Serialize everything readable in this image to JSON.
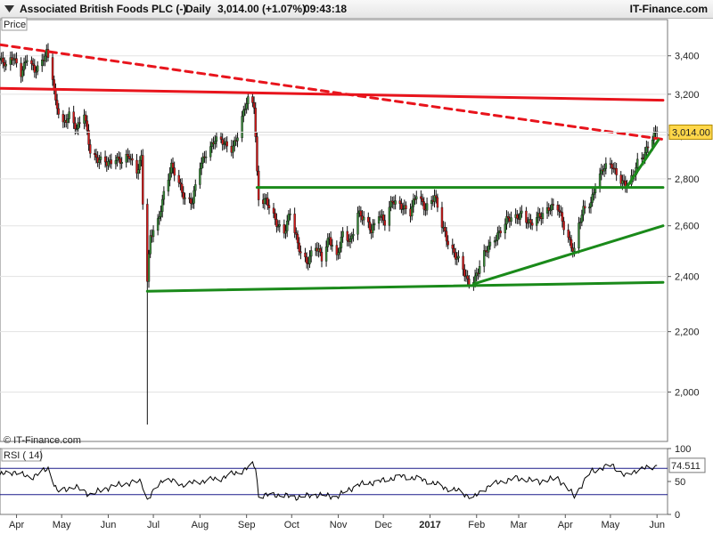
{
  "header": {
    "instrument": "Associated British Foods PLC (-)",
    "interval": "Daily",
    "quote": "3,014.00 (+1.07%)",
    "time": "09:43:18",
    "brand": "IT-Finance.com",
    "icon": "triangle-down-icon"
  },
  "price_panel": {
    "tag": "Price",
    "copyright": "© IT-Finance.com",
    "last_price_label": "3,014.00"
  },
  "rsi_panel": {
    "tag": "RSI ( 14)",
    "last_value_label": "74.511"
  },
  "colors": {
    "resistance": "#e8141c",
    "support": "#1a8a1a",
    "candle_up": "#3a8a3a",
    "candle_down": "#d21a1a",
    "rsi_line": "#000000",
    "rsi_levels": "#1a1a8a",
    "last_price_bg": "#ffd74a"
  },
  "chart_data": [
    {
      "type": "candlestick",
      "title": "Associated British Foods PLC (-)",
      "scale": "log",
      "ylim": [
        1850,
        3600
      ],
      "y_ticks": [
        {
          "value": 2000,
          "label": "2,000"
        },
        {
          "value": 2200,
          "label": "2,200"
        },
        {
          "value": 2400,
          "label": "2,400"
        },
        {
          "value": 2600,
          "label": "2,600"
        },
        {
          "value": 2800,
          "label": "2,800"
        },
        {
          "value": 3000,
          "label": "3,000"
        },
        {
          "value": 3200,
          "label": "3,200"
        },
        {
          "value": 3400,
          "label": "3,400"
        }
      ],
      "x_ticks": [
        {
          "date": "2016-04-01",
          "label": "Apr"
        },
        {
          "date": "2016-05-01",
          "label": "May"
        },
        {
          "date": "2016-06-01",
          "label": "Jun"
        },
        {
          "date": "2016-07-01",
          "label": "Jul"
        },
        {
          "date": "2016-08-01",
          "label": "Aug"
        },
        {
          "date": "2016-09-01",
          "label": "Sep"
        },
        {
          "date": "2016-10-01",
          "label": "Oct"
        },
        {
          "date": "2016-11-01",
          "label": "Nov"
        },
        {
          "date": "2016-12-01",
          "label": "Dec"
        },
        {
          "date": "2017-01-01",
          "label": "2017"
        },
        {
          "date": "2017-02-01",
          "label": "Feb"
        },
        {
          "date": "2017-03-01",
          "label": "Mar"
        },
        {
          "date": "2017-04-01",
          "label": "Apr"
        },
        {
          "date": "2017-05-01",
          "label": "May"
        },
        {
          "date": "2017-06-01",
          "label": "Jun"
        }
      ],
      "last_price": 3014,
      "close_path": [
        [
          "2016-03-21",
          3380
        ],
        [
          "2016-03-25",
          3340
        ],
        [
          "2016-03-30",
          3400
        ],
        [
          "2016-04-04",
          3310
        ],
        [
          "2016-04-08",
          3380
        ],
        [
          "2016-04-13",
          3320
        ],
        [
          "2016-04-18",
          3380
        ],
        [
          "2016-04-21",
          3420
        ],
        [
          "2016-04-25",
          3280
        ],
        [
          "2016-04-27",
          3150
        ],
        [
          "2016-05-02",
          3060
        ],
        [
          "2016-05-06",
          3100
        ],
        [
          "2016-05-11",
          3020
        ],
        [
          "2016-05-16",
          3110
        ],
        [
          "2016-05-20",
          2930
        ],
        [
          "2016-05-25",
          2880
        ],
        [
          "2016-05-31",
          2870
        ],
        [
          "2016-06-06",
          2900
        ],
        [
          "2016-06-10",
          2870
        ],
        [
          "2016-06-15",
          2900
        ],
        [
          "2016-06-20",
          2840
        ],
        [
          "2016-06-23",
          2900
        ],
        [
          "2016-06-24",
          2700
        ],
        [
          "2016-06-27",
          2380
        ],
        [
          "2016-06-29",
          2550
        ],
        [
          "2016-07-04",
          2620
        ],
        [
          "2016-07-08",
          2740
        ],
        [
          "2016-07-13",
          2850
        ],
        [
          "2016-07-18",
          2780
        ],
        [
          "2016-07-22",
          2720
        ],
        [
          "2016-07-27",
          2700
        ],
        [
          "2016-08-01",
          2850
        ],
        [
          "2016-08-05",
          2920
        ],
        [
          "2016-08-11",
          2980
        ],
        [
          "2016-08-16",
          2960
        ],
        [
          "2016-08-22",
          2940
        ],
        [
          "2016-08-26",
          3000
        ],
        [
          "2016-08-31",
          3130
        ],
        [
          "2016-09-02",
          3170
        ],
        [
          "2016-09-06",
          3150
        ],
        [
          "2016-09-07",
          3000
        ],
        [
          "2016-09-08",
          2830
        ],
        [
          "2016-09-09",
          2720
        ],
        [
          "2016-09-14",
          2700
        ],
        [
          "2016-09-20",
          2620
        ],
        [
          "2016-09-26",
          2580
        ],
        [
          "2016-09-30",
          2650
        ],
        [
          "2016-10-05",
          2520
        ],
        [
          "2016-10-11",
          2460
        ],
        [
          "2016-10-17",
          2510
        ],
        [
          "2016-10-21",
          2470
        ],
        [
          "2016-10-26",
          2560
        ],
        [
          "2016-10-31",
          2470
        ],
        [
          "2016-11-04",
          2560
        ],
        [
          "2016-11-09",
          2540
        ],
        [
          "2016-11-14",
          2660
        ],
        [
          "2016-11-18",
          2620
        ],
        [
          "2016-11-23",
          2580
        ],
        [
          "2016-11-28",
          2660
        ],
        [
          "2016-12-02",
          2610
        ],
        [
          "2016-12-07",
          2700
        ],
        [
          "2016-12-13",
          2690
        ],
        [
          "2016-12-19",
          2650
        ],
        [
          "2016-12-23",
          2730
        ],
        [
          "2016-12-29",
          2680
        ],
        [
          "2017-01-04",
          2720
        ],
        [
          "2017-01-09",
          2600
        ],
        [
          "2017-01-13",
          2540
        ],
        [
          "2017-01-18",
          2480
        ],
        [
          "2017-01-23",
          2420
        ],
        [
          "2017-01-26",
          2380
        ],
        [
          "2017-01-31",
          2400
        ],
        [
          "2017-02-06",
          2480
        ],
        [
          "2017-02-10",
          2520
        ],
        [
          "2017-02-15",
          2570
        ],
        [
          "2017-02-21",
          2620
        ],
        [
          "2017-02-27",
          2630
        ],
        [
          "2017-03-03",
          2660
        ],
        [
          "2017-03-09",
          2600
        ],
        [
          "2017-03-15",
          2640
        ],
        [
          "2017-03-21",
          2680
        ],
        [
          "2017-03-27",
          2670
        ],
        [
          "2017-03-31",
          2600
        ],
        [
          "2017-04-04",
          2540
        ],
        [
          "2017-04-07",
          2500
        ],
        [
          "2017-04-10",
          2600
        ],
        [
          "2017-04-13",
          2660
        ],
        [
          "2017-04-18",
          2700
        ],
        [
          "2017-04-21",
          2780
        ],
        [
          "2017-04-26",
          2840
        ],
        [
          "2017-05-02",
          2860
        ],
        [
          "2017-05-08",
          2800
        ],
        [
          "2017-05-11",
          2770
        ],
        [
          "2017-05-16",
          2800
        ],
        [
          "2017-05-19",
          2880
        ],
        [
          "2017-05-24",
          2920
        ],
        [
          "2017-05-26",
          2950
        ],
        [
          "2017-05-30",
          2990
        ],
        [
          "2017-06-01",
          3014
        ]
      ],
      "min_wick": [
        "2016-06-27",
        1900
      ],
      "trendlines": [
        {
          "color": "resistance",
          "style": "dashed",
          "from": [
            "2016-03-21",
            3460
          ],
          "to": [
            "2017-06-05",
            2980
          ]
        },
        {
          "color": "resistance",
          "style": "solid",
          "from": [
            "2016-03-21",
            3230
          ],
          "to": [
            "2017-06-05",
            3170
          ]
        },
        {
          "color": "support",
          "style": "solid",
          "from": [
            "2016-09-08",
            2762
          ],
          "to": [
            "2017-06-05",
            2762
          ]
        },
        {
          "color": "support",
          "style": "solid",
          "from": [
            "2016-06-27",
            2345
          ],
          "to": [
            "2017-06-05",
            2378
          ]
        },
        {
          "color": "support",
          "style": "solid",
          "from": [
            "2017-01-30",
            2372
          ],
          "to": [
            "2017-06-05",
            2600
          ]
        },
        {
          "color": "support",
          "style": "solid",
          "from": [
            "2017-05-12",
            2765
          ],
          "to": [
            "2017-06-02",
            2978
          ]
        }
      ]
    },
    {
      "type": "line",
      "title": "RSI ( 14)",
      "ylim": [
        0,
        100
      ],
      "y_ticks": [
        {
          "value": 0,
          "label": "0"
        },
        {
          "value": 50,
          "label": "50"
        },
        {
          "value": 100,
          "label": "100"
        }
      ],
      "levels": [
        30,
        70
      ],
      "last_value": 74.511,
      "series": [
        {
          "values": [
            [
              "2016-03-21",
              60
            ],
            [
              "2016-03-31",
              65
            ],
            [
              "2016-04-10",
              55
            ],
            [
              "2016-04-22",
              70
            ],
            [
              "2016-04-28",
              35
            ],
            [
              "2016-05-10",
              42
            ],
            [
              "2016-05-20",
              30
            ],
            [
              "2016-05-31",
              40
            ],
            [
              "2016-06-10",
              46
            ],
            [
              "2016-06-23",
              50
            ],
            [
              "2016-06-27",
              22
            ],
            [
              "2016-07-08",
              55
            ],
            [
              "2016-07-20",
              45
            ],
            [
              "2016-08-01",
              50
            ],
            [
              "2016-08-15",
              55
            ],
            [
              "2016-08-31",
              68
            ],
            [
              "2016-09-05",
              75
            ],
            [
              "2016-09-07",
              72
            ],
            [
              "2016-09-09",
              28
            ],
            [
              "2016-09-20",
              30
            ],
            [
              "2016-10-05",
              26
            ],
            [
              "2016-10-17",
              30
            ],
            [
              "2016-10-31",
              27
            ],
            [
              "2016-11-14",
              45
            ],
            [
              "2016-11-28",
              50
            ],
            [
              "2016-12-13",
              58
            ],
            [
              "2016-12-29",
              52
            ],
            [
              "2017-01-09",
              42
            ],
            [
              "2017-01-20",
              35
            ],
            [
              "2017-01-30",
              25
            ],
            [
              "2017-02-10",
              45
            ],
            [
              "2017-02-27",
              55
            ],
            [
              "2017-03-15",
              50
            ],
            [
              "2017-03-27",
              55
            ],
            [
              "2017-04-07",
              28
            ],
            [
              "2017-04-18",
              65
            ],
            [
              "2017-05-02",
              75
            ],
            [
              "2017-05-11",
              58
            ],
            [
              "2017-05-19",
              68
            ],
            [
              "2017-05-30",
              72
            ],
            [
              "2017-06-01",
              74.511
            ]
          ]
        }
      ]
    }
  ]
}
